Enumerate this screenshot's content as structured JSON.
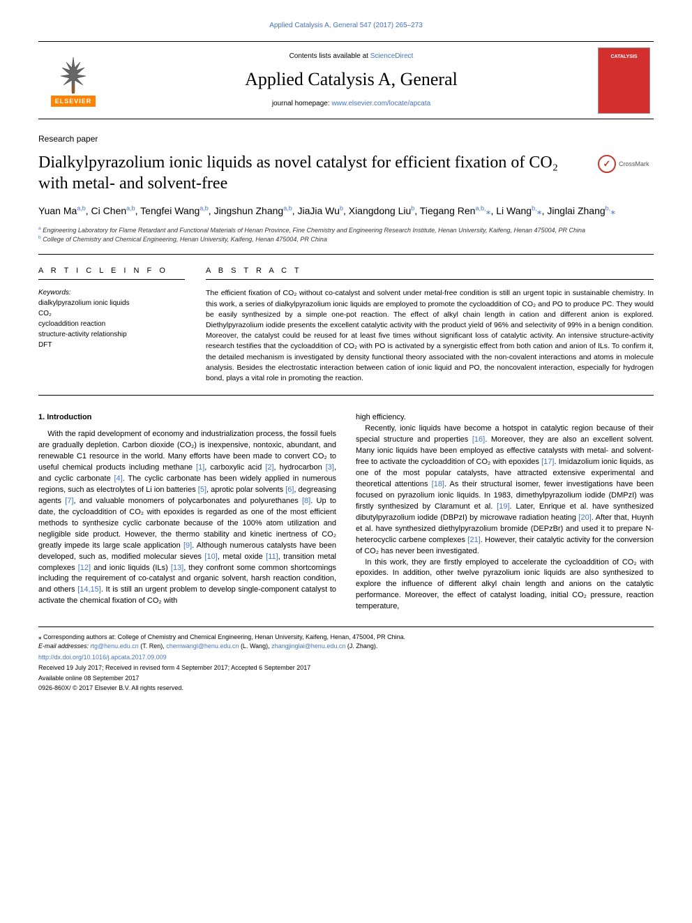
{
  "top_link": {
    "text": "Applied Catalysis A, General 547 (2017) 265–273",
    "href": "#"
  },
  "header": {
    "contents_prefix": "Contents lists available at ",
    "contents_link": "ScienceDirect",
    "journal": "Applied Catalysis A, General",
    "homepage_prefix": "journal homepage: ",
    "homepage_link": "www.elsevier.com/locate/apcata",
    "publisher_label": "ELSEVIER",
    "cover_text": "CATALYSIS"
  },
  "paper_type": "Research paper",
  "title": "Dialkylpyrazolium ionic liquids as novel catalyst for efficient fixation of CO₂ with metal- and solvent-free",
  "crossmark": "CrossMark",
  "authors_html": "Yuan Ma<sup>a,b</sup>, Ci Chen<sup>a,b</sup>, Tengfei Wang<sup>a,b</sup>, Jingshun Zhang<sup>a,b</sup>, JiaJia Wu<sup>b</sup>, Xiangdong Liu<sup>b</sup>, Tiegang Ren<sup>a,b,</sup><span class='corr'>⁎</span>, Li Wang<sup>b,</sup><span class='corr'>⁎</span>, Jinglai Zhang<sup>b,</sup><span class='corr'>⁎</span>",
  "affiliations": {
    "a": "Engineering Laboratory for Flame Retardant and Functional Materials of Henan Province, Fine Chemistry and Engineering Research Institute, Henan University, Kaifeng, Henan 475004, PR China",
    "b": "College of Chemistry and Chemical Engineering, Henan University, Kaifeng, Henan 475004, PR China"
  },
  "article_info": {
    "head": "A R T I C L E  I N F O",
    "keywords_label": "Keywords:",
    "keywords": [
      "dialkylpyrazolium ionic liquids",
      "CO₂",
      "cycloaddition reaction",
      "structure-activity relationship",
      "DFT"
    ]
  },
  "abstract": {
    "head": "A B S T R A C T",
    "text": "The efficient fixation of CO₂ without co-catalyst and solvent under metal-free condition is still an urgent topic in sustainable chemistry. In this work, a series of dialkylpyrazolium ionic liquids are employed to promote the cycloaddition of CO₂ and PO to produce PC. They would be easily synthesized by a simple one-pot reaction. The effect of alkyl chain length in cation and different anion is explored. Diethylpyrazolium iodide presents the excellent catalytic activity with the product yield of 96% and selectivity of 99% in a benign condition. Moreover, the catalyst could be reused for at least five times without significant loss of catalytic activity. An intensive structure-activity research testifies that the cycloaddition of CO₂ with PO is activated by a synergistic effect from both cation and anion of ILs. To confirm it, the detailed mechanism is investigated by density functional theory associated with the non-covalent interactions and atoms in molecule analysis. Besides the electrostatic interaction between cation of ionic liquid and PO, the noncovalent interaction, especially for hydrogen bond, plays a vital role in promoting the reaction."
  },
  "introduction_head": "1. Introduction",
  "body": {
    "p1": "With the rapid development of economy and industrialization process, the fossil fuels are gradually depletion. Carbon dioxide (CO₂) is inexpensive, nontoxic, abundant, and renewable C1 resource in the world. Many efforts have been made to convert CO₂ to useful chemical products including methane <span class='cite'>[1]</span>, carboxylic acid <span class='cite'>[2]</span>, hydrocarbon <span class='cite'>[3]</span>, and cyclic carbonate <span class='cite'>[4]</span>. The cyclic carbonate has been widely applied in numerous regions, such as electrolytes of Li ion batteries <span class='cite'>[5]</span>, aprotic polar solvents <span class='cite'>[6]</span>, degreasing agents <span class='cite'>[7]</span>, and valuable monomers of polycarbonates and polyurethanes <span class='cite'>[8]</span>. Up to date, the cycloaddition of CO₂ with epoxides is regarded as one of the most efficient methods to synthesize cyclic carbonate because of the 100% atom utilization and negligible side product. However, the thermo stability and kinetic inertness of CO₂ greatly impede its large scale application <span class='cite'>[9]</span>. Although numerous catalysts have been developed, such as, modified molecular sieves <span class='cite'>[10]</span>, metal oxide <span class='cite'>[11]</span>, transition metal complexes <span class='cite'>[12]</span> and ionic liquids (ILs) <span class='cite'>[13]</span>, they confront some common shortcomings including the requirement of co-catalyst and organic solvent, harsh reaction condition, and others <span class='cite'>[14,15]</span>. It is still an urgent problem to develop single-component catalyst to activate the chemical fixation of CO₂ with",
    "p2_first": "high efficiency.",
    "p2": "Recently, ionic liquids have become a hotspot in catalytic region because of their special structure and properties <span class='cite'>[16]</span>. Moreover, they are also an excellent solvent. Many ionic liquids have been employed as effective catalysts with metal- and solvent-free to activate the cycloaddition of CO₂ with epoxides <span class='cite'>[17]</span>. Imidazolium ionic liquids, as one of the most popular catalysts, have attracted extensive experimental and theoretical attentions <span class='cite'>[18]</span>. As their structural isomer, fewer investigations have been focused on pyrazolium ionic liquids. In 1983, dimethylpyrazolium iodide (DMPzI) was firstly synthesized by Claramunt et al. <span class='cite'>[19]</span>. Later, Enrique et al. have synthesized dibutylpyrazolium iodide (DBPzI) by microwave radiation heating <span class='cite'>[20]</span>. After that, Huynh et al. have synthesized diethylpyrazolium bromide (DEPzBr) and used it to prepare N-heterocyclic carbene complexes <span class='cite'>[21]</span>. However, their catalytic activity for the conversion of CO₂ has never been investigated.",
    "p3": "In this work, they are firstly employed to accelerate the cycloaddition of CO₂ with epoxides. In addition, other twelve pyrazolium ionic liquids are also synthesized to explore the influence of different alkyl chain length and anions on the catalytic performance. Moreover, the effect of catalyst loading, initial CO₂ pressure, reaction temperature,"
  },
  "footnotes": {
    "corr_note": "⁎ Corresponding authors at: College of Chemistry and Chemical Engineering, Henan University, Kaifeng, Henan, 475004, PR China.",
    "emails_label": "E-mail addresses: ",
    "emails": "rtg@henu.edu.cn (T. Ren), chemwangl@henu.edu.cn (L. Wang), zhangjinglai@henu.edu.cn (J. Zhang).",
    "doi": "http://dx.doi.org/10.1016/j.apcata.2017.09.009",
    "dates": "Received 19 July 2017; Received in revised form 4 September 2017; Accepted 6 September 2017",
    "online": "Available online 08 September 2017",
    "copyright": "0926-860X/ © 2017 Elsevier B.V. All rights reserved."
  },
  "colors": {
    "link": "#4472c4",
    "elsevier_orange": "#ff8200",
    "cover_red": "#d32f2f",
    "crossmark_red": "#c0392b"
  }
}
